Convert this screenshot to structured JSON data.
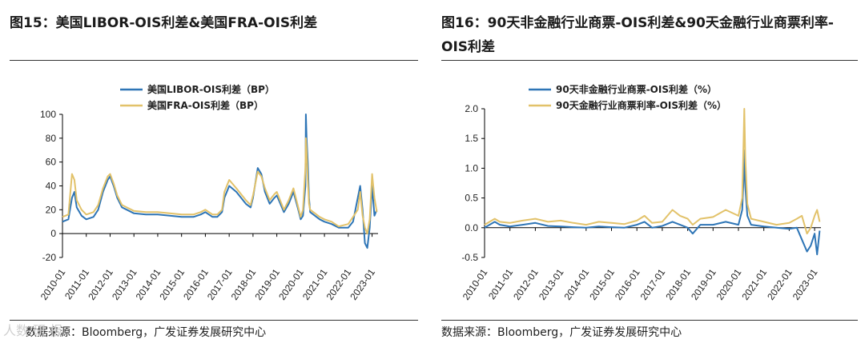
{
  "colors": {
    "blue": "#2e75b6",
    "gold": "#e2c26a",
    "axis": "#000000"
  },
  "footer": {
    "source_left": "数据来源：Bloomberg，广发证券发展研究中心",
    "source_right": "数据来源：Bloomberg，广发证券发展研究中心",
    "watermark": "人数 研 报"
  },
  "chart_data": [
    {
      "type": "line",
      "title": "图15：美国LIBOR-OIS利差&美国FRA-OIS利差",
      "ylim": [
        -20,
        100
      ],
      "yticks": [
        "100",
        "80",
        "60",
        "40",
        "20",
        "0",
        "-20"
      ],
      "ytick_values": [
        100,
        80,
        60,
        40,
        20,
        0,
        -20
      ],
      "x_range": [
        2010.0,
        2023.25
      ],
      "xtick_labels": [
        "2010-01",
        "2011-01",
        "2012-01",
        "2013-01",
        "2014-01",
        "2015-01",
        "2016-01",
        "2017-01",
        "2018-01",
        "2019-01",
        "2020-01",
        "2021-01",
        "2022-01",
        "2023-01"
      ],
      "xtick_values": [
        2010,
        2011,
        2012,
        2013,
        2014,
        2015,
        2016,
        2017,
        2018,
        2019,
        2020,
        2021,
        2022,
        2023
      ],
      "legend_position": "top-left",
      "series": [
        {
          "name": "美国LIBOR-OIS利差（BP）",
          "color_key": "blue",
          "x": [
            2010.0,
            2010.25,
            2010.4,
            2010.5,
            2010.6,
            2010.8,
            2011.0,
            2011.3,
            2011.5,
            2011.7,
            2011.9,
            2012.0,
            2012.15,
            2012.3,
            2012.5,
            2012.7,
            2013.0,
            2013.5,
            2014.0,
            2014.5,
            2015.0,
            2015.5,
            2015.8,
            2016.0,
            2016.3,
            2016.5,
            2016.7,
            2016.8,
            2017.0,
            2017.3,
            2017.5,
            2017.7,
            2017.9,
            2018.0,
            2018.2,
            2018.35,
            2018.5,
            2018.7,
            2018.9,
            2019.0,
            2019.3,
            2019.5,
            2019.7,
            2019.9,
            2020.0,
            2020.1,
            2020.2,
            2020.22,
            2020.25,
            2020.3,
            2020.35,
            2020.4,
            2020.6,
            2020.8,
            2021.0,
            2021.3,
            2021.6,
            2022.0,
            2022.2,
            2022.4,
            2022.5,
            2022.6,
            2022.7,
            2022.8,
            2022.9,
            2023.0,
            2023.1,
            2023.2
          ],
          "y": [
            10,
            12,
            30,
            35,
            22,
            15,
            12,
            14,
            20,
            35,
            45,
            48,
            40,
            30,
            22,
            20,
            17,
            16,
            16,
            15,
            14,
            14,
            16,
            18,
            14,
            14,
            18,
            30,
            40,
            35,
            30,
            25,
            22,
            30,
            55,
            50,
            35,
            25,
            30,
            32,
            18,
            25,
            35,
            20,
            12,
            15,
            40,
            100,
            80,
            60,
            30,
            18,
            15,
            12,
            10,
            8,
            5,
            5,
            10,
            30,
            40,
            20,
            -8,
            -12,
            5,
            40,
            15,
            20
          ]
        },
        {
          "name": "美国FRA-OIS利差（BP）",
          "color_key": "gold",
          "x": [
            2010.0,
            2010.25,
            2010.4,
            2010.5,
            2010.6,
            2010.8,
            2011.0,
            2011.3,
            2011.5,
            2011.7,
            2011.9,
            2012.0,
            2012.15,
            2012.3,
            2012.5,
            2012.7,
            2013.0,
            2013.5,
            2014.0,
            2014.5,
            2015.0,
            2015.5,
            2015.8,
            2016.0,
            2016.3,
            2016.5,
            2016.7,
            2016.8,
            2017.0,
            2017.3,
            2017.5,
            2017.7,
            2017.9,
            2018.0,
            2018.2,
            2018.35,
            2018.5,
            2018.7,
            2018.9,
            2019.0,
            2019.3,
            2019.5,
            2019.7,
            2019.9,
            2020.0,
            2020.1,
            2020.2,
            2020.22,
            2020.25,
            2020.3,
            2020.35,
            2020.4,
            2020.6,
            2020.8,
            2021.0,
            2021.3,
            2021.6,
            2022.0,
            2022.2,
            2022.4,
            2022.5,
            2022.6,
            2022.7,
            2022.8,
            2022.9,
            2023.0,
            2023.1,
            2023.2
          ],
          "y": [
            14,
            16,
            50,
            45,
            28,
            20,
            16,
            18,
            24,
            38,
            48,
            50,
            42,
            32,
            24,
            22,
            19,
            18,
            18,
            17,
            16,
            16,
            18,
            20,
            16,
            16,
            20,
            35,
            45,
            38,
            33,
            28,
            24,
            32,
            52,
            48,
            38,
            28,
            33,
            35,
            20,
            28,
            38,
            22,
            14,
            20,
            55,
            80,
            70,
            45,
            25,
            20,
            17,
            14,
            12,
            10,
            6,
            8,
            14,
            20,
            35,
            15,
            5,
            0,
            12,
            50,
            30,
            18
          ]
        }
      ]
    },
    {
      "type": "line",
      "title": "图16：90天非金融行业商票-OIS利差&90天金融行业商票利率-OIS利差",
      "ylim": [
        -0.5,
        2.0
      ],
      "yticks": [
        "2.0",
        "1.5",
        "1.0",
        "0.5",
        "0.0",
        "-0.5"
      ],
      "ytick_values": [
        2.0,
        1.5,
        1.0,
        0.5,
        0.0,
        -0.5
      ],
      "x_range": [
        2010.0,
        2023.25
      ],
      "xtick_labels": [
        "2010-01",
        "2011-01",
        "2012-01",
        "2013-01",
        "2014-01",
        "2015-01",
        "2016-01",
        "2017-01",
        "2018-01",
        "2019-01",
        "2020-01",
        "2021-01",
        "2022-01",
        "2023-01"
      ],
      "xtick_values": [
        2010,
        2011,
        2012,
        2013,
        2014,
        2015,
        2016,
        2017,
        2018,
        2019,
        2020,
        2021,
        2022,
        2023
      ],
      "legend_position": "top-left",
      "series": [
        {
          "name": "90天非金融行业商票-OIS利差（%）",
          "color_key": "blue",
          "x": [
            2010.0,
            2010.4,
            2010.6,
            2011.0,
            2011.5,
            2012.0,
            2012.5,
            2013.0,
            2013.5,
            2014.0,
            2014.5,
            2015.0,
            2015.5,
            2016.0,
            2016.3,
            2016.6,
            2017.0,
            2017.4,
            2017.7,
            2018.0,
            2018.2,
            2018.5,
            2019.0,
            2019.5,
            2020.0,
            2020.15,
            2020.2,
            2020.23,
            2020.27,
            2020.35,
            2020.5,
            2021.0,
            2021.5,
            2022.0,
            2022.3,
            2022.5,
            2022.7,
            2022.85,
            2023.0,
            2023.1,
            2023.2
          ],
          "y": [
            0.0,
            0.1,
            0.05,
            0.02,
            0.05,
            0.08,
            0.03,
            0.02,
            0.01,
            0.0,
            0.02,
            0.01,
            0.0,
            0.05,
            0.1,
            0.0,
            0.03,
            0.1,
            0.05,
            0.0,
            -0.1,
            0.05,
            0.05,
            0.1,
            0.05,
            0.3,
            0.8,
            1.3,
            0.7,
            0.2,
            0.05,
            0.02,
            0.0,
            -0.02,
            0.0,
            -0.2,
            -0.4,
            -0.3,
            -0.1,
            -0.45,
            -0.05
          ]
        },
        {
          "name": "90天金融行业商票利率-OIS利差（%）",
          "color_key": "gold",
          "x": [
            2010.0,
            2010.4,
            2010.6,
            2011.0,
            2011.5,
            2012.0,
            2012.5,
            2013.0,
            2013.5,
            2014.0,
            2014.5,
            2015.0,
            2015.5,
            2016.0,
            2016.3,
            2016.6,
            2017.0,
            2017.4,
            2017.7,
            2018.0,
            2018.2,
            2018.5,
            2019.0,
            2019.5,
            2020.0,
            2020.15,
            2020.2,
            2020.23,
            2020.27,
            2020.35,
            2020.5,
            2021.0,
            2021.5,
            2022.0,
            2022.3,
            2022.5,
            2022.7,
            2022.85,
            2023.0,
            2023.1,
            2023.2
          ],
          "y": [
            0.05,
            0.15,
            0.1,
            0.08,
            0.12,
            0.15,
            0.1,
            0.12,
            0.08,
            0.05,
            0.1,
            0.08,
            0.06,
            0.12,
            0.2,
            0.08,
            0.1,
            0.3,
            0.2,
            0.15,
            0.05,
            0.15,
            0.18,
            0.3,
            0.2,
            0.5,
            1.4,
            2.0,
            1.2,
            0.4,
            0.15,
            0.1,
            0.05,
            0.08,
            0.15,
            0.2,
            -0.1,
            0.0,
            0.2,
            0.3,
            0.1
          ]
        }
      ]
    }
  ]
}
